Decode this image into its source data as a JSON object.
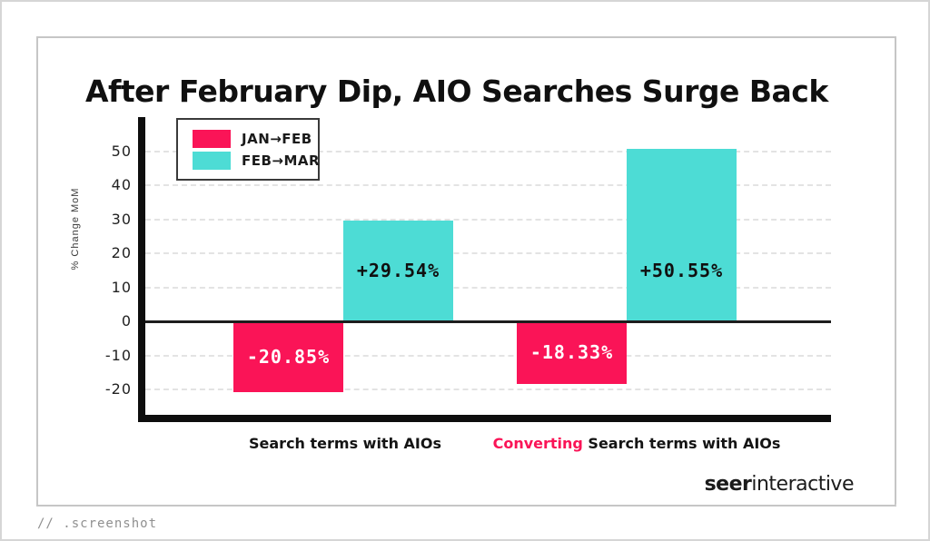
{
  "page": {
    "footer_note": "// .screenshot",
    "brand_bold": "seer",
    "brand_regular": "interactive"
  },
  "title": "After February Dip, AIO Searches Surge Back",
  "colors": {
    "pink": "#FA1457",
    "teal": "#4DDCD5",
    "blue": "#2456E4",
    "yellow": "#F9D616",
    "axis": "#0E0E0E",
    "grid": "#E3E3E3"
  },
  "icons": {
    "top_left": "camera-icon",
    "bottom_right": "scissors-icon"
  },
  "chart_data": {
    "type": "bar",
    "title": "After February Dip, AIO Searches Surge Back",
    "xlabel": "",
    "ylabel": "% Change MoM",
    "ylim": [
      -25,
      55
    ],
    "yticks": [
      50,
      40,
      30,
      20,
      10,
      0,
      -10,
      -20
    ],
    "grid": "horizontal-dashed",
    "legend_position": "top-left",
    "legend": [
      {
        "label": "JAN→FEB",
        "color": "#FA1457"
      },
      {
        "label": "FEB→MAR",
        "color": "#4DDCD5"
      }
    ],
    "categories": [
      {
        "segments": [
          {
            "text": "Search terms with AIOs",
            "color": "#141414"
          }
        ]
      },
      {
        "segments": [
          {
            "text": "Converting ",
            "color": "#FA1457"
          },
          {
            "text": "Search terms with AIOs",
            "color": "#141414"
          }
        ]
      }
    ],
    "series": [
      {
        "name": "JAN→FEB",
        "color": "#FA1457",
        "label_color": "#FFFFFF",
        "values": [
          -20.85,
          -18.33
        ],
        "labels": [
          "-20.85%",
          "-18.33%"
        ]
      },
      {
        "name": "FEB→MAR",
        "color": "#4DDCD5",
        "label_color": "#101010",
        "values": [
          29.54,
          50.55
        ],
        "labels": [
          "+29.54%",
          "+50.55%"
        ]
      }
    ]
  }
}
